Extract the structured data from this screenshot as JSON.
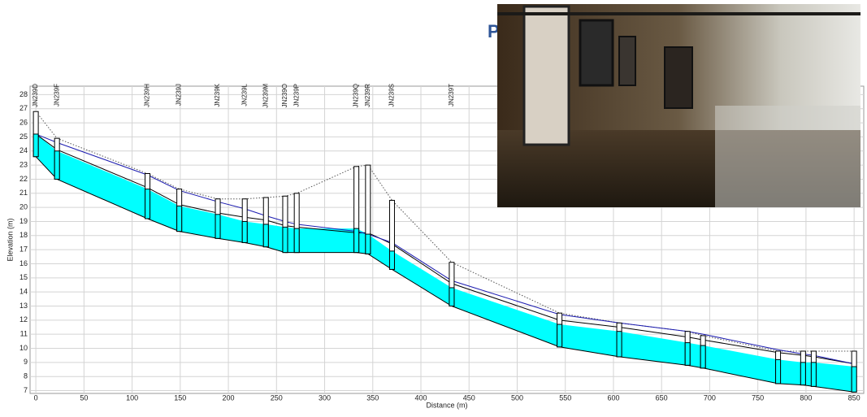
{
  "chart_data": {
    "type": "profile",
    "title": "P",
    "xlabel": "Distance (m)",
    "ylabel": "Elevation (m)",
    "xlim": [
      -6,
      860
    ],
    "ylim": [
      6.8,
      28.6
    ],
    "xticks": [
      0,
      50,
      100,
      150,
      200,
      250,
      300,
      350,
      400,
      450,
      500,
      550,
      600,
      650,
      700,
      750,
      800,
      850
    ],
    "yticks": [
      7,
      8,
      9,
      10,
      11,
      12,
      13,
      14,
      15,
      16,
      17,
      18,
      19,
      20,
      21,
      22,
      23,
      24,
      25,
      26,
      27,
      28
    ],
    "grid": true,
    "x": [
      0,
      22,
      116,
      149,
      189,
      217,
      239,
      259,
      271,
      333,
      345,
      370,
      432,
      544,
      606,
      677,
      693,
      771,
      797,
      808,
      850
    ],
    "node_labels": [
      "JN239D",
      "JN239F",
      "JN239H",
      "JN239J",
      "JN239K",
      "JN239L",
      "JN239M",
      "JN239O",
      "JN239P",
      "JN239Q",
      "JN239R",
      "JN239S",
      "JN239T",
      null,
      null,
      null,
      null,
      null,
      null,
      null,
      null
    ],
    "invert": {
      "color": "#000000",
      "values": [
        23.6,
        22.0,
        19.2,
        18.3,
        17.8,
        17.5,
        17.2,
        16.8,
        16.8,
        16.8,
        16.7,
        15.6,
        13.0,
        10.1,
        9.4,
        8.8,
        8.6,
        7.5,
        7.4,
        7.3,
        6.9
      ]
    },
    "water": {
      "color": "#00ffff",
      "values": [
        25.2,
        24.0,
        21.3,
        20.1,
        19.5,
        19.0,
        18.8,
        18.6,
        18.5,
        18.5,
        18.1,
        16.9,
        14.3,
        11.7,
        11.2,
        10.4,
        10.2,
        9.2,
        9.0,
        9.0,
        8.7
      ]
    },
    "crown": {
      "color": "#000000",
      "values": [
        25.2,
        24.1,
        21.4,
        20.2,
        19.6,
        19.3,
        19.1,
        18.7,
        18.6,
        18.2,
        18.2,
        17.4,
        14.6,
        12.0,
        11.5,
        10.8,
        10.6,
        9.7,
        9.5,
        9.4,
        8.9
      ]
    },
    "hgl": {
      "color": "#1a1ab0",
      "values": [
        25.2,
        24.6,
        22.3,
        21.2,
        20.4,
        19.9,
        19.4,
        19.0,
        18.8,
        18.3,
        18.1,
        17.5,
        14.8,
        12.4,
        11.8,
        11.2,
        11.0,
        9.9,
        9.6,
        9.5,
        8.9
      ]
    },
    "ground": {
      "color": "#555555",
      "values": [
        26.8,
        24.9,
        22.4,
        21.3,
        20.6,
        20.6,
        20.7,
        20.8,
        21.0,
        22.9,
        23.0,
        20.5,
        16.1,
        12.5,
        11.8,
        11.2,
        10.9,
        9.8,
        9.8,
        9.8,
        9.8
      ]
    }
  }
}
